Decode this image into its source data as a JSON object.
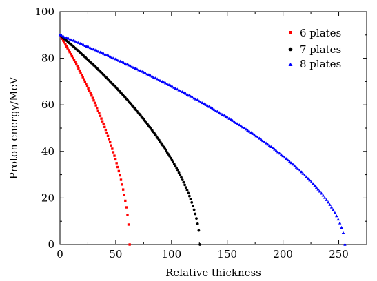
{
  "chart_data": {
    "type": "scatter",
    "title": "",
    "xlabel": "Relative thickness",
    "ylabel": "Proton energy/MeV",
    "xlim": [
      0,
      275
    ],
    "ylim": [
      0,
      100
    ],
    "xticks": [
      0,
      50,
      100,
      150,
      200,
      250
    ],
    "yticks": [
      0,
      20,
      40,
      60,
      80,
      100
    ],
    "grid": false,
    "legend_position": "top-right",
    "series": [
      {
        "name": "6 plates",
        "color": "#ff0000",
        "marker": "square",
        "start_energy": 90,
        "range_end": 62.5,
        "point_count": 64
      },
      {
        "name": "7 plates",
        "color": "#000000",
        "marker": "circle",
        "start_energy": 90,
        "range_end": 125.5,
        "point_count": 120
      },
      {
        "name": "8 plates",
        "color": "#0000ff",
        "marker": "triangle",
        "start_energy": 90,
        "range_end": 255.5,
        "point_count": 170
      }
    ]
  }
}
